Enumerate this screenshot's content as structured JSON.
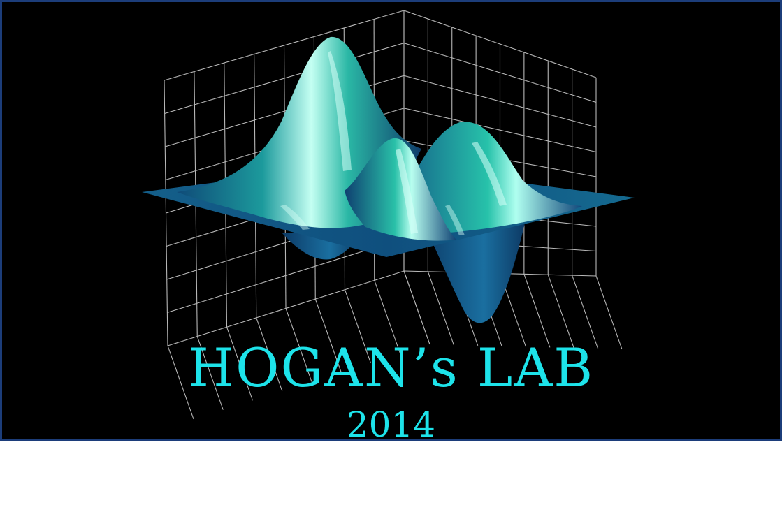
{
  "logo": {
    "title": "HOGAN’s LAB",
    "year": "2014",
    "text_color": "#1de3ea"
  },
  "colors": {
    "background": "#000000",
    "frame": "#1c3d7a",
    "grid": "#d8d8d8",
    "surface_dark": "#0f3f6e",
    "surface_mid": "#147a94",
    "surface_light": "#27c4ad",
    "surface_highlight": "#b8fff1"
  }
}
